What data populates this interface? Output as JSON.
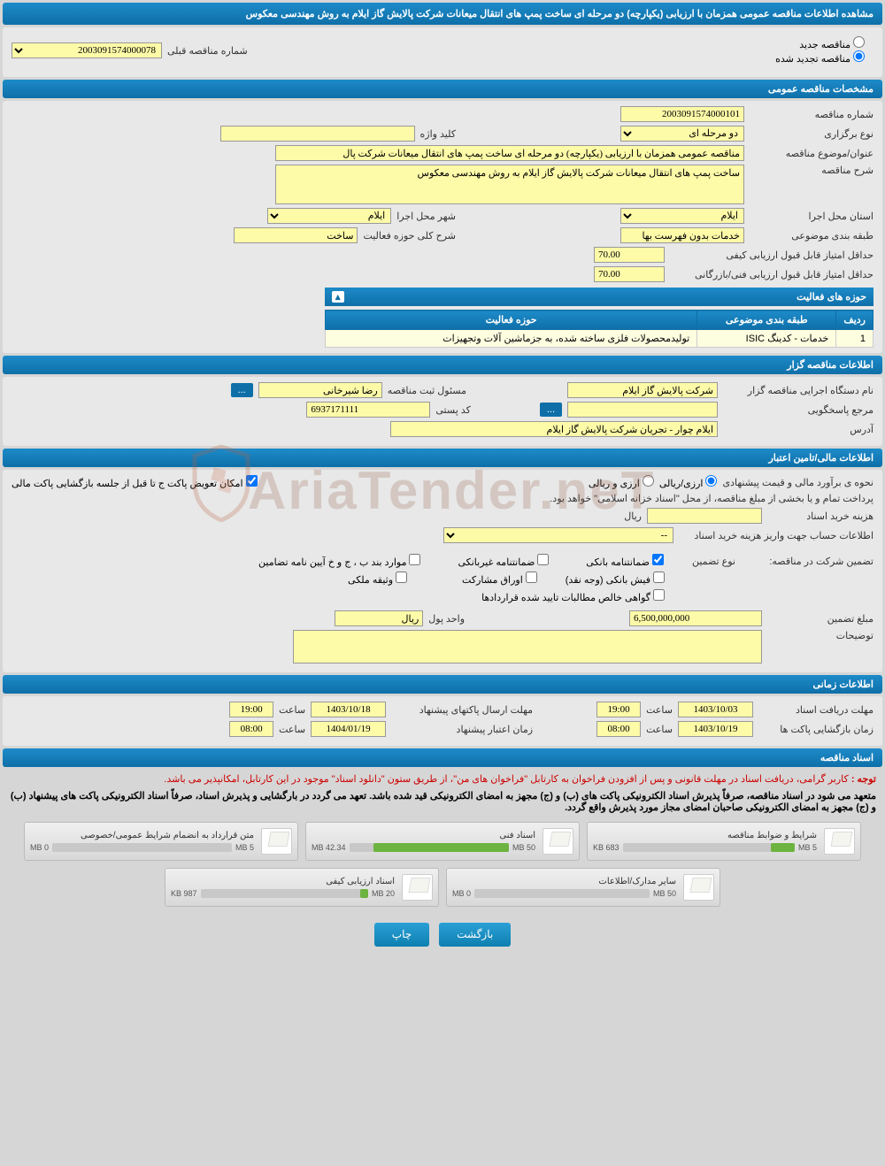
{
  "header": {
    "title": "مشاهده اطلاعات مناقصه عمومی همزمان با ارزیابی (یکپارچه) دو مرحله ای ساخت پمپ های انتقال میعانات شرکت پالایش گاز ایلام به روش مهندسی معکوس"
  },
  "top_radio": {
    "new": "مناقصه جدید",
    "renewed": "مناقصه تجدید شده",
    "prev_label": "شماره مناقصه قبلی",
    "prev_value": "2003091574000078"
  },
  "sec_general": {
    "title": "مشخصات مناقصه عمومی",
    "number_label": "شماره مناقصه",
    "number": "2003091574000101",
    "type_label": "نوع برگزاری",
    "type": "دو مرحله ای",
    "keyword_label": "کلید واژه",
    "keyword": "",
    "subject_label": "عنوان/موضوع مناقصه",
    "subject": "مناقصه عمومی همزمان با ارزیابی (یکپارچه) دو مرحله ای ساخت پمپ های انتقال میعانات شرکت پال",
    "desc_label": "شرح مناقصه",
    "desc": "ساخت پمپ های انتقال میعانات شرکت پالایش گاز ایلام به روش مهندسی معکوس",
    "province_label": "استان محل اجرا",
    "province": "ایلام",
    "city_label": "شهر محل اجرا",
    "city": "ایلام",
    "class_label": "طبقه بندی موضوعی",
    "class": "خدمات بدون فهرست بها",
    "scope_label": "شرح کلی حوزه فعالیت",
    "scope": "ساخت",
    "min_qual_label": "حداقل امتیاز قابل قبول ارزیابی کیفی",
    "min_qual": "70.00",
    "min_tech_label": "حداقل امتیاز قابل قبول ارزیابی فنی/بازرگانی",
    "min_tech": "70.00",
    "activity_table": {
      "header": "حوزه های فعالیت",
      "cols": [
        "ردیف",
        "طبقه بندی موضوعی",
        "حوزه فعالیت"
      ],
      "rows": [
        [
          "1",
          "خدمات - کدینگ ISIC",
          "تولیدمحصولات فلزی ساخته شده، به جزماشین آلات وتجهیزات"
        ]
      ]
    }
  },
  "sec_holder": {
    "title": "اطلاعات مناقصه گزار",
    "org_label": "نام دستگاه اجرایی مناقصه گزار",
    "org": "شرکت پالایش گاز ایلام",
    "reg_label": "مسئول ثبت مناقصه",
    "reg": "رضا شیرخانی",
    "ref_label": "مرجع پاسخگویی",
    "ref": "",
    "post_label": "کد پستی",
    "post": "6937171111",
    "addr_label": "آدرس",
    "addr": "ایلام چوار - تجریان شرکت پالایش گاز ایلام"
  },
  "sec_fin": {
    "title": "اطلاعات مالی/تامین اعتبار",
    "est_label": "نحوه ی برآورد مالی و قیمت پیشنهادی",
    "est_opt1": "ارزی/ریالی",
    "est_opt2": "ارزی و ریالی",
    "replace_label": "امکان تعویض پاکت ج تا قبل از جلسه بازگشایی پاکت مالی",
    "note": "پرداخت تمام و یا بخشی از مبلغ مناقصه، از محل \"اسناد خزانه اسلامی\" خواهد بود.",
    "cost_label": "هزینه خرید اسناد",
    "cost": "",
    "cost_unit": "ریال",
    "acc_label": "اطلاعات حساب جهت واریز هزینه خرید اسناد",
    "acc": "--",
    "guar_label": "تضمین شرکت در مناقصه:",
    "guar_type_label": "نوع تضمین",
    "guar_opts": {
      "bank": "ضمانتنامه بانکی",
      "nonbank": "ضمانتنامه غیربانکی",
      "items": "موارد بند ب ، ج و خ آیین نامه تضامین",
      "cash": "فیش بانکی (وجه نقد)",
      "bonds": "اوراق مشارکت",
      "prop": "وثیقه ملکی",
      "claims": "گواهی خالص مطالبات تایید شده قراردادها"
    },
    "amount_label": "مبلغ تضمین",
    "amount": "6,500,000,000",
    "unit_label": "واحد پول",
    "unit": "ریال",
    "notes_label": "توضیحات",
    "notes": ""
  },
  "sec_time": {
    "title": "اطلاعات زمانی",
    "recv_label": "مهلت دریافت اسناد",
    "recv_date": "1403/10/03",
    "recv_time": "19:00",
    "send_label": "مهلت ارسال پاکتهای پیشنهاد",
    "send_date": "1403/10/18",
    "send_time": "19:00",
    "open_label": "زمان بازگشایی پاکت ها",
    "open_date": "1403/10/19",
    "open_time": "08:00",
    "valid_label": "زمان اعتبار پیشنهاد",
    "valid_date": "1404/01/19",
    "valid_time": "08:00",
    "time_label": "ساعت"
  },
  "sec_docs": {
    "title": "اسناد مناقصه",
    "note1_prefix": "توجه : ",
    "note1": "کاربر گرامی، دریافت اسناد در مهلت قانونی و پس از افزودن فراخوان به کارتابل \"فراخوان های من\"، از طریق ستون \"دانلود اسناد\" موجود در این کارتابل، امکانپذیر می باشد.",
    "note2": "متعهد می شود در اسناد مناقصه، صرفاً پذیرش اسناد الکترونیکی پاکت های (ب) و (ج) مجهز به امضای الکترونیکی قید شده باشد. تعهد می گردد در بارگشایی و پذیرش اسناد، صرفاً اسناد الکترونیکی پاکت های پیشنهاد (ب) و (ج) مجهز به امضای الکترونیکی صاحبان امضای مجاز مورد پذیرش واقع گردد.",
    "docs": [
      {
        "title": "شرایط و ضوابط مناقصه",
        "used": "683 KB",
        "cap": "5 MB",
        "pct": 14
      },
      {
        "title": "اسناد فنی",
        "used": "42.34 MB",
        "cap": "50 MB",
        "pct": 85
      },
      {
        "title": "متن قرارداد به انضمام شرایط عمومی/خصوصی",
        "used": "0 MB",
        "cap": "5 MB",
        "pct": 0
      },
      {
        "title": "سایر مدارک/اطلاعات",
        "used": "0 MB",
        "cap": "50 MB",
        "pct": 0
      },
      {
        "title": "اسناد ارزیابی کیفی",
        "used": "987 KB",
        "cap": "20 MB",
        "pct": 5
      }
    ]
  },
  "btns": {
    "back": "بازگشت",
    "print": "چاپ"
  }
}
